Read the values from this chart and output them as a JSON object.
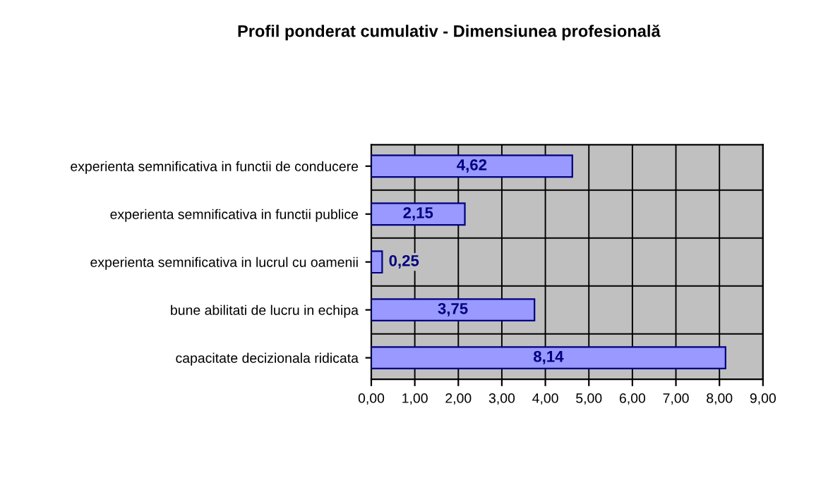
{
  "chart_data": {
    "type": "bar",
    "orientation": "horizontal",
    "title": "Profil ponderat cumulativ - Dimensiunea profesională",
    "categories": [
      "experienta semnificativa in functii de conducere",
      "experienta semnificativa in functii publice",
      "experienta semnificativa in lucrul cu oamenii",
      "bune abilitati de lucru in echipa",
      "capacitate decizionala ridicata"
    ],
    "values": [
      4.62,
      2.15,
      0.25,
      3.75,
      8.14
    ],
    "value_labels": [
      "4,62",
      "2,15",
      "0,25",
      "3,75",
      "8,14"
    ],
    "color": "#9999ff",
    "xlim": [
      0,
      9
    ],
    "xticks": [
      {
        "value": 0,
        "label": "0,00"
      },
      {
        "value": 1,
        "label": "1,00"
      },
      {
        "value": 2,
        "label": "2,00"
      },
      {
        "value": 3,
        "label": "3,00"
      },
      {
        "value": 4,
        "label": "4,00"
      },
      {
        "value": 5,
        "label": "5,00"
      },
      {
        "value": 6,
        "label": "6,00"
      },
      {
        "value": 7,
        "label": "7,00"
      },
      {
        "value": 8,
        "label": "8,00"
      },
      {
        "value": 9,
        "label": "9,00"
      }
    ],
    "grid": true
  }
}
